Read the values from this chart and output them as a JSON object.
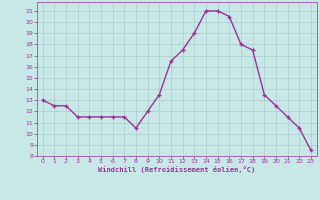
{
  "x": [
    0,
    1,
    2,
    3,
    4,
    5,
    6,
    7,
    8,
    9,
    10,
    11,
    12,
    13,
    14,
    15,
    16,
    17,
    18,
    19,
    20,
    21,
    22,
    23
  ],
  "y": [
    13,
    12.5,
    12.5,
    11.5,
    11.5,
    11.5,
    11.5,
    11.5,
    10.5,
    12,
    13.5,
    16.5,
    17.5,
    19,
    21,
    21,
    20.5,
    18,
    17.5,
    13.5,
    12.5,
    11.5,
    10.5,
    8.5
  ],
  "line_color": "#993399",
  "marker": "+",
  "marker_color": "#993399",
  "background_color": "#c8e8e8",
  "grid_color": "#aacccc",
  "xlabel": "Windchill (Refroidissement éolien,°C)",
  "xlabel_color": "#993399",
  "tick_color": "#993399",
  "xlim": [
    -0.5,
    23.5
  ],
  "ylim": [
    8,
    21.8
  ],
  "yticks": [
    8,
    9,
    10,
    11,
    12,
    13,
    14,
    15,
    16,
    17,
    18,
    19,
    20,
    21
  ],
  "xticks": [
    0,
    1,
    2,
    3,
    4,
    5,
    6,
    7,
    8,
    9,
    10,
    11,
    12,
    13,
    14,
    15,
    16,
    17,
    18,
    19,
    20,
    21,
    22,
    23
  ],
  "linewidth": 1.0,
  "markersize": 3
}
